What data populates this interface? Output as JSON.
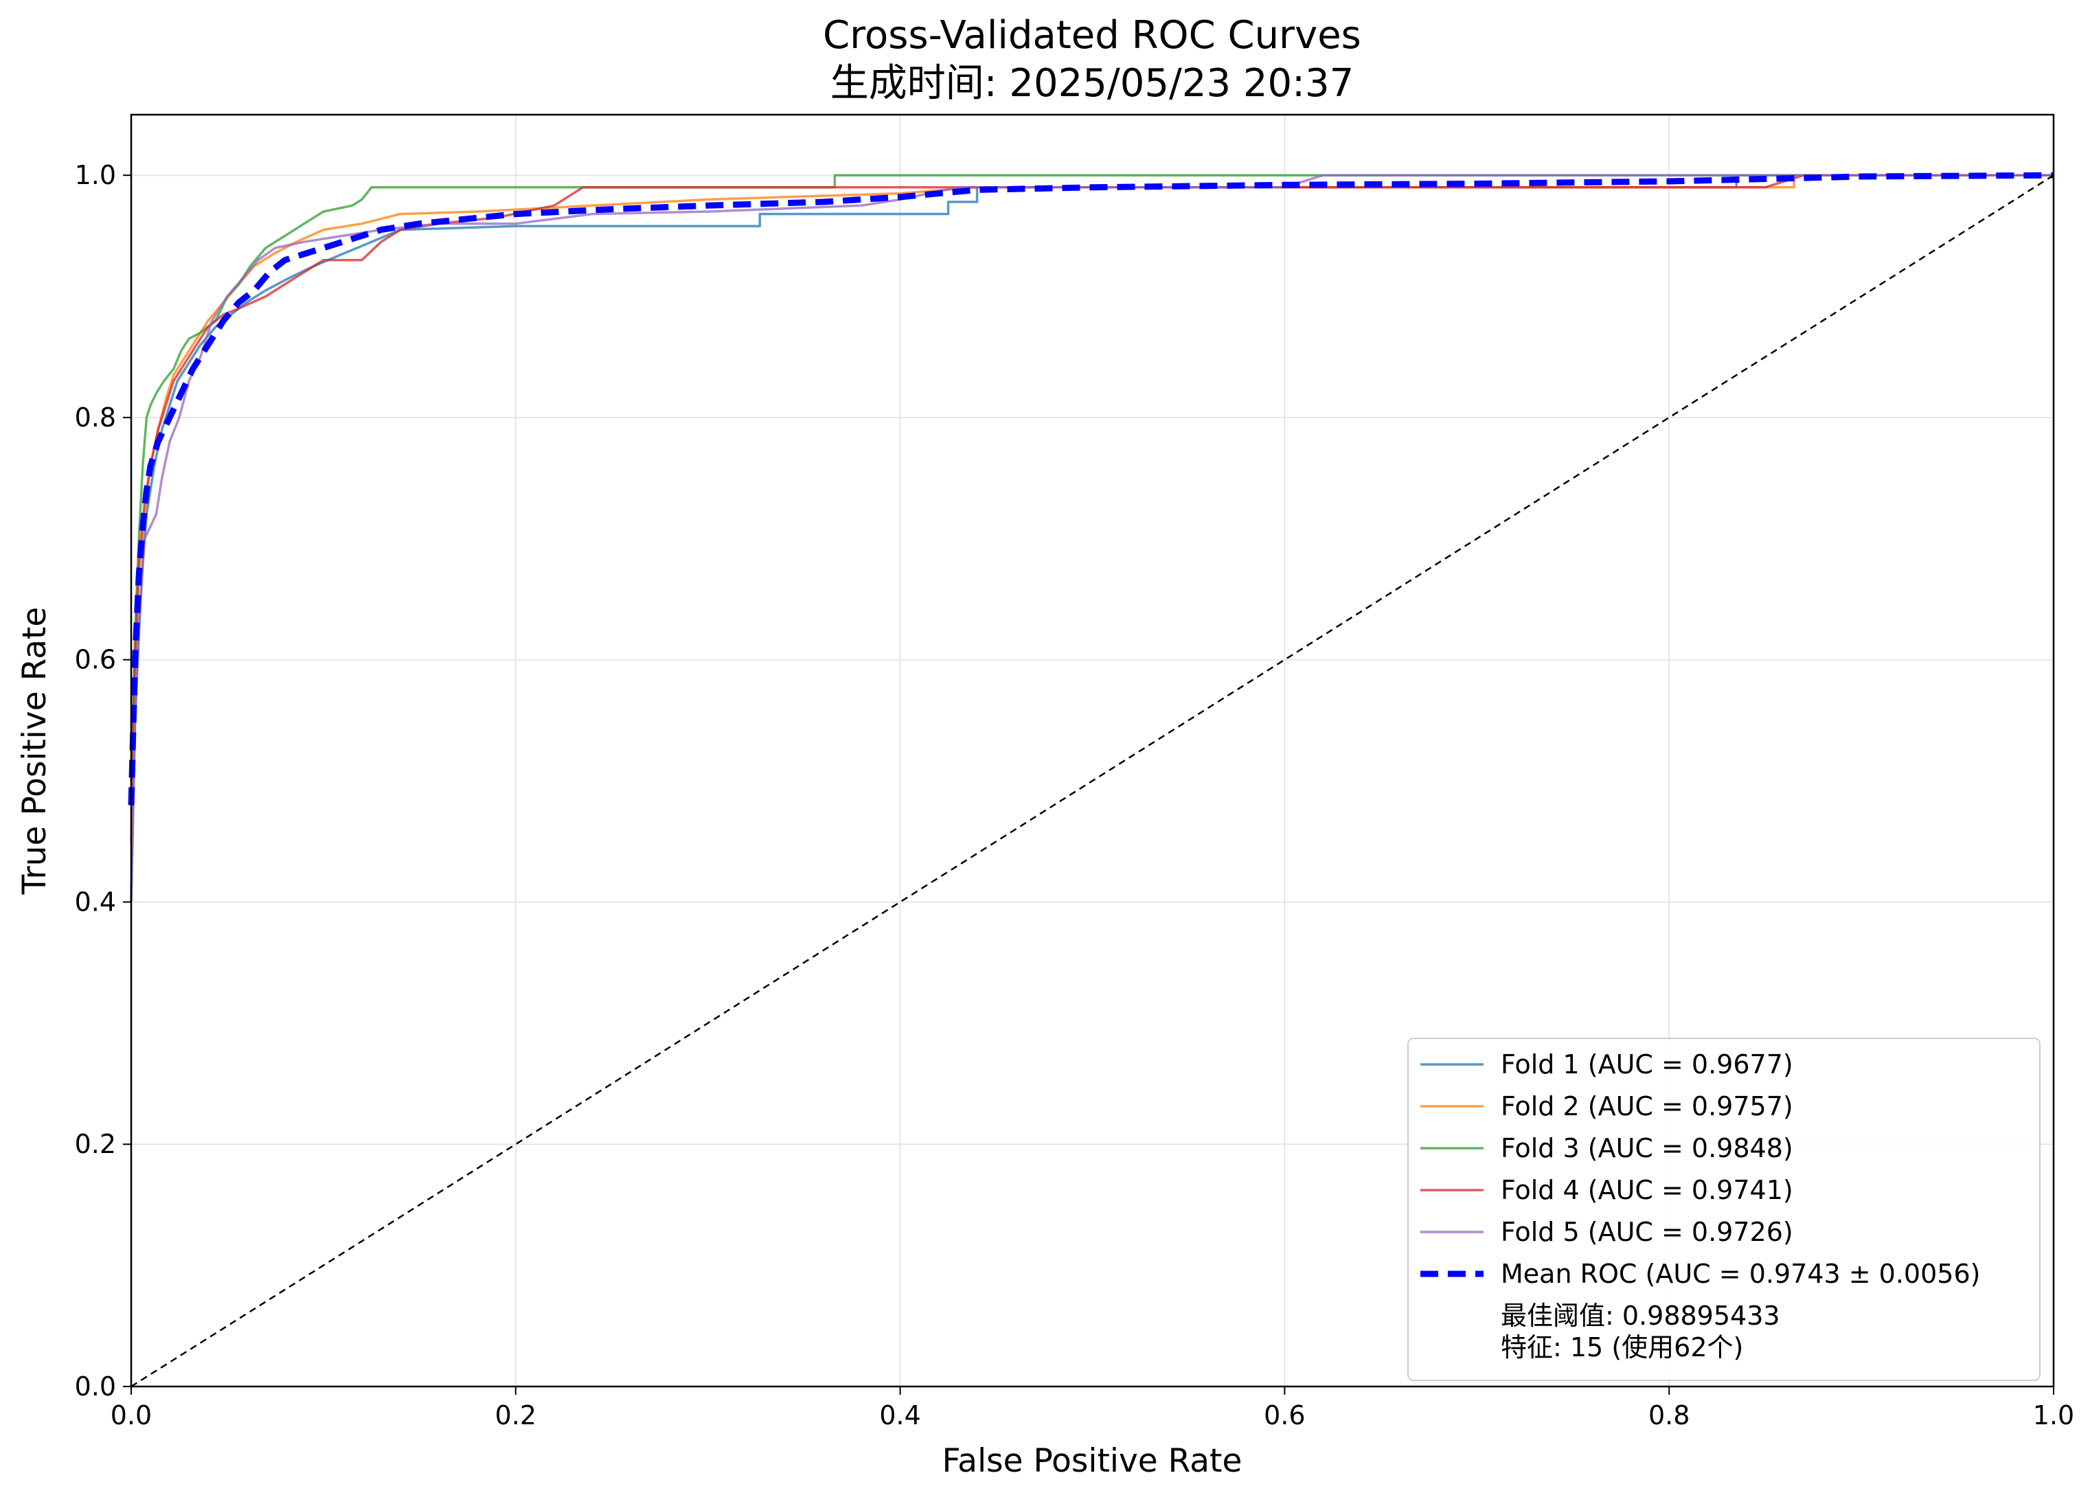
{
  "chart_data": {
    "type": "line",
    "title": "Cross-Validated ROC Curves",
    "subtitle": "生成时间: 2025/05/23 20:37",
    "xlabel": "False Positive Rate",
    "ylabel": "True Positive Rate",
    "xlim": [
      0.0,
      1.0
    ],
    "ylim": [
      0.0,
      1.05
    ],
    "xticks": [
      "0.0",
      "0.2",
      "0.4",
      "0.6",
      "0.8",
      "1.0"
    ],
    "yticks": [
      "0.0",
      "0.2",
      "0.4",
      "0.6",
      "0.8",
      "1.0"
    ],
    "grid": true,
    "legend_position": "lower right",
    "series": [
      {
        "name": "Fold 1 (AUC = 0.9677)",
        "color": "#1f77b4",
        "x": [
          0.0,
          0.002,
          0.004,
          0.006,
          0.008,
          0.012,
          0.016,
          0.02,
          0.024,
          0.03,
          0.036,
          0.044,
          0.052,
          0.06,
          0.07,
          0.082,
          0.095,
          0.11,
          0.125,
          0.14,
          0.2,
          0.26,
          0.327,
          0.327,
          0.38,
          0.425,
          0.425,
          0.44,
          0.44,
          0.6,
          0.75,
          0.835,
          0.835,
          1.0
        ],
        "y": [
          0.4,
          0.55,
          0.62,
          0.68,
          0.72,
          0.76,
          0.79,
          0.81,
          0.83,
          0.845,
          0.86,
          0.875,
          0.885,
          0.895,
          0.905,
          0.915,
          0.925,
          0.935,
          0.945,
          0.955,
          0.958,
          0.958,
          0.958,
          0.968,
          0.968,
          0.968,
          0.978,
          0.978,
          0.99,
          0.99,
          0.99,
          0.99,
          1.0,
          1.0
        ]
      },
      {
        "name": "Fold 2 (AUC = 0.9757)",
        "color": "#ff7f0e",
        "x": [
          0.0,
          0.002,
          0.004,
          0.007,
          0.01,
          0.014,
          0.018,
          0.022,
          0.028,
          0.034,
          0.04,
          0.048,
          0.056,
          0.064,
          0.074,
          0.086,
          0.1,
          0.12,
          0.14,
          0.18,
          0.24,
          0.3,
          0.4,
          0.44,
          0.6,
          0.8,
          0.865,
          0.865,
          1.0
        ],
        "y": [
          0.45,
          0.6,
          0.67,
          0.72,
          0.76,
          0.79,
          0.815,
          0.835,
          0.85,
          0.865,
          0.88,
          0.895,
          0.91,
          0.925,
          0.935,
          0.945,
          0.955,
          0.96,
          0.968,
          0.97,
          0.975,
          0.98,
          0.985,
          0.99,
          0.99,
          0.99,
          0.99,
          1.0,
          1.0
        ]
      },
      {
        "name": "Fold 3 (AUC = 0.9848)",
        "color": "#2ca02c",
        "x": [
          0.0,
          0.002,
          0.004,
          0.006,
          0.008,
          0.01,
          0.013,
          0.017,
          0.022,
          0.026,
          0.03,
          0.036,
          0.044,
          0.05,
          0.056,
          0.062,
          0.07,
          0.08,
          0.09,
          0.1,
          0.115,
          0.12,
          0.125,
          0.15,
          0.2,
          0.3,
          0.366,
          0.366,
          0.5,
          0.7,
          1.0
        ],
        "y": [
          0.5,
          0.62,
          0.7,
          0.76,
          0.8,
          0.81,
          0.82,
          0.83,
          0.84,
          0.855,
          0.865,
          0.87,
          0.88,
          0.9,
          0.91,
          0.925,
          0.94,
          0.95,
          0.96,
          0.97,
          0.975,
          0.98,
          0.99,
          0.99,
          0.99,
          0.99,
          0.99,
          1.0,
          1.0,
          1.0,
          1.0
        ]
      },
      {
        "name": "Fold 4 (AUC = 0.9741)",
        "color": "#d62728",
        "x": [
          0.0,
          0.002,
          0.004,
          0.007,
          0.01,
          0.014,
          0.018,
          0.022,
          0.028,
          0.034,
          0.04,
          0.048,
          0.056,
          0.07,
          0.08,
          0.09,
          0.1,
          0.12,
          0.13,
          0.14,
          0.16,
          0.19,
          0.22,
          0.235,
          0.3,
          0.5,
          0.7,
          0.85,
          0.87,
          1.0
        ],
        "y": [
          0.48,
          0.6,
          0.68,
          0.73,
          0.76,
          0.79,
          0.81,
          0.83,
          0.845,
          0.86,
          0.875,
          0.885,
          0.89,
          0.9,
          0.91,
          0.92,
          0.93,
          0.93,
          0.945,
          0.955,
          0.96,
          0.965,
          0.975,
          0.99,
          0.99,
          0.99,
          0.99,
          0.99,
          1.0,
          1.0
        ]
      },
      {
        "name": "Fold 5 (AUC = 0.9726)",
        "color": "#9467bd",
        "x": [
          0.0,
          0.002,
          0.004,
          0.007,
          0.01,
          0.013,
          0.016,
          0.02,
          0.025,
          0.03,
          0.036,
          0.042,
          0.05,
          0.058,
          0.066,
          0.075,
          0.09,
          0.11,
          0.13,
          0.16,
          0.2,
          0.24,
          0.3,
          0.38,
          0.4,
          0.43,
          0.6,
          0.62,
          0.8,
          1.0
        ],
        "y": [
          0.4,
          0.55,
          0.63,
          0.7,
          0.71,
          0.72,
          0.75,
          0.78,
          0.8,
          0.83,
          0.85,
          0.88,
          0.9,
          0.915,
          0.93,
          0.94,
          0.945,
          0.95,
          0.955,
          0.96,
          0.96,
          0.968,
          0.97,
          0.975,
          0.98,
          0.99,
          0.99,
          1.0,
          1.0,
          1.0
        ]
      },
      {
        "name": "Mean ROC (AUC = 0.9743 ± 0.0056)",
        "color": "#0000ff",
        "x": [
          0.0,
          0.002,
          0.004,
          0.006,
          0.008,
          0.01,
          0.014,
          0.02,
          0.026,
          0.032,
          0.04,
          0.048,
          0.056,
          0.064,
          0.072,
          0.08,
          0.09,
          0.1,
          0.11,
          0.12,
          0.13,
          0.15,
          0.2,
          0.25,
          0.3,
          0.36,
          0.4,
          0.44,
          0.5,
          0.6,
          0.7,
          0.8,
          0.85,
          0.9,
          1.0
        ],
        "y": [
          0.48,
          0.6,
          0.67,
          0.71,
          0.74,
          0.76,
          0.78,
          0.8,
          0.82,
          0.84,
          0.86,
          0.88,
          0.895,
          0.905,
          0.92,
          0.93,
          0.935,
          0.94,
          0.945,
          0.95,
          0.955,
          0.96,
          0.968,
          0.972,
          0.975,
          0.978,
          0.982,
          0.988,
          0.99,
          0.992,
          0.993,
          0.995,
          0.997,
          0.999,
          1.0
        ]
      },
      {
        "name": "",
        "color": "#000000",
        "x": [
          0.0,
          1.0
        ],
        "y": [
          0.0,
          1.0
        ]
      }
    ],
    "legend_extra": [
      "最佳阈值: 0.98895433",
      "特征: 15 (使用62个)"
    ]
  }
}
